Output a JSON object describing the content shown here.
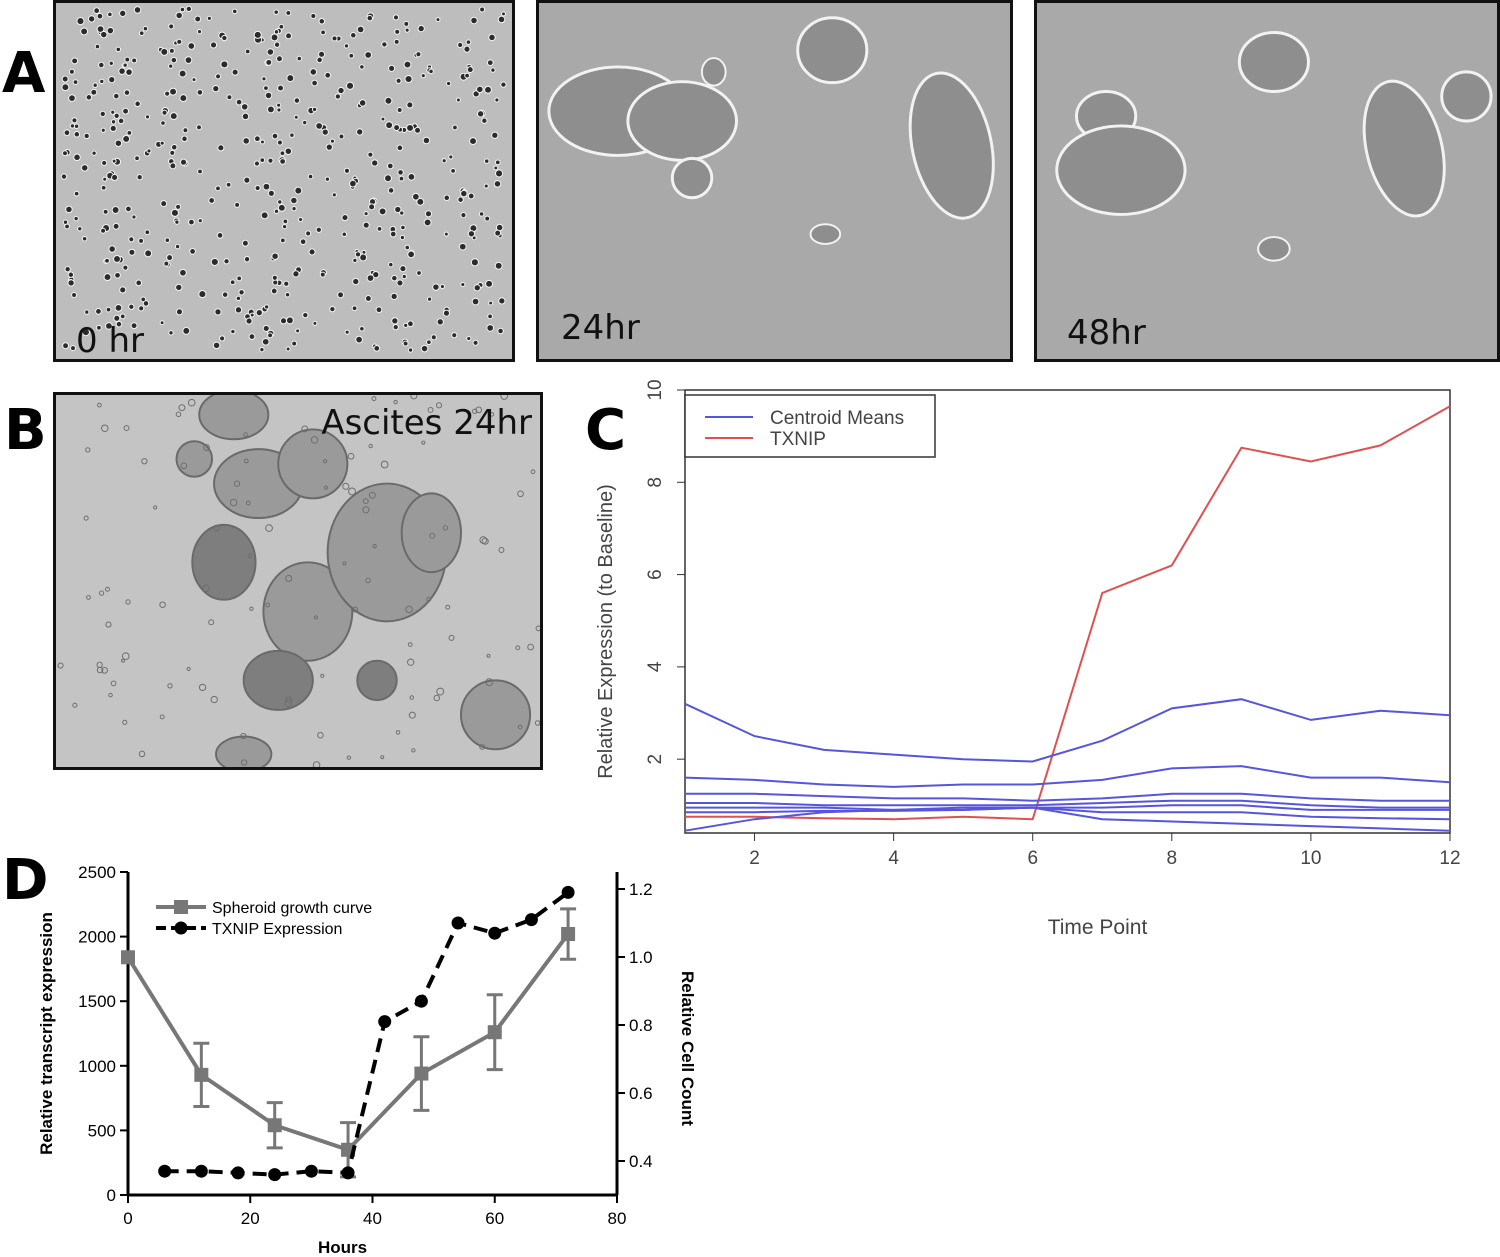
{
  "panels": {
    "a": {
      "letter": "A",
      "images": [
        {
          "label": "0 hr"
        },
        {
          "label": "24hr"
        },
        {
          "label": "48hr"
        }
      ]
    },
    "b": {
      "letter": "B",
      "image_label": "Ascites 24hr"
    },
    "c": {
      "letter": "C"
    },
    "d": {
      "letter": "D"
    }
  },
  "colors": {
    "centroid_lines": "#5555dd",
    "txnip_line_c": "#e05050",
    "growth_curve": "#777777",
    "txnip_d": "#000000"
  },
  "chart_data": [
    {
      "panel": "C",
      "type": "line",
      "xlabel": "Time Point",
      "ylabel": "Relative Expression (to Baseline)",
      "xlim": [
        1,
        12
      ],
      "ylim": [
        0.4,
        10
      ],
      "x_ticks": [
        2,
        4,
        6,
        8,
        10,
        12
      ],
      "y_ticks": [
        2,
        4,
        6,
        8,
        10
      ],
      "legend_position": "top-left",
      "legend": [
        "Centroid Means",
        "TXNIP"
      ],
      "x": [
        1,
        2,
        3,
        4,
        5,
        6,
        7,
        8,
        9,
        10,
        11,
        12
      ],
      "series": [
        {
          "name": "TXNIP",
          "group": "TXNIP",
          "values": [
            0.75,
            0.75,
            0.72,
            0.7,
            0.75,
            0.7,
            5.6,
            6.2,
            8.75,
            8.45,
            8.8,
            9.65
          ]
        },
        {
          "group": "Centroid Means",
          "values": [
            3.2,
            2.5,
            2.2,
            2.1,
            2.0,
            1.95,
            2.4,
            3.1,
            3.3,
            2.85,
            3.05,
            2.95
          ]
        },
        {
          "group": "Centroid Means",
          "values": [
            1.6,
            1.55,
            1.45,
            1.4,
            1.45,
            1.45,
            1.55,
            1.8,
            1.85,
            1.6,
            1.6,
            1.5
          ]
        },
        {
          "group": "Centroid Means",
          "values": [
            1.25,
            1.25,
            1.2,
            1.15,
            1.15,
            1.1,
            1.15,
            1.25,
            1.25,
            1.15,
            1.1,
            1.1
          ]
        },
        {
          "group": "Centroid Means",
          "values": [
            1.05,
            1.05,
            1.0,
            1.0,
            1.0,
            1.0,
            1.05,
            1.1,
            1.1,
            1.0,
            0.95,
            0.95
          ]
        },
        {
          "group": "Centroid Means",
          "values": [
            0.95,
            0.95,
            0.95,
            0.9,
            0.9,
            0.95,
            0.95,
            1.0,
            1.0,
            0.9,
            0.9,
            0.9
          ]
        },
        {
          "group": "Centroid Means",
          "values": [
            0.85,
            0.85,
            0.88,
            0.88,
            0.9,
            0.95,
            0.85,
            0.85,
            0.85,
            0.75,
            0.72,
            0.7
          ]
        },
        {
          "group": "Centroid Means",
          "values": [
            0.45,
            0.7,
            0.85,
            0.9,
            0.95,
            0.95,
            0.7,
            0.65,
            0.6,
            0.55,
            0.5,
            0.45
          ]
        }
      ]
    },
    {
      "panel": "D",
      "type": "line",
      "xlabel": "Hours",
      "ylabel_left": "Relative transcript expression",
      "ylabel_right": "Relative Cell Count",
      "xlim": [
        0,
        80
      ],
      "ylim_left": [
        0,
        2500
      ],
      "ylim_right": [
        0.3,
        1.25
      ],
      "x_ticks": [
        0,
        20,
        40,
        60,
        80
      ],
      "y_ticks_left": [
        0,
        500,
        1000,
        1500,
        2000,
        2500
      ],
      "y_ticks_right": [
        0.4,
        0.6,
        0.8,
        1.0,
        1.2
      ],
      "y_ticks_right_labels": [
        "0.4",
        "0.6",
        "0.8",
        "1.0",
        "1.2"
      ],
      "legend_position": "top-left",
      "series": [
        {
          "name": "Spheroid growth curve",
          "axis": "left",
          "marker": "square",
          "x": [
            0,
            12,
            24,
            36,
            48,
            60,
            72
          ],
          "values": [
            1840,
            930,
            540,
            350,
            940,
            1260,
            2020
          ],
          "error": [
            0,
            245,
            175,
            210,
            285,
            290,
            195
          ]
        },
        {
          "name": "TXNIP Expression",
          "axis": "right",
          "marker": "circle",
          "dashed": true,
          "x": [
            6,
            12,
            18,
            24,
            30,
            36,
            42,
            48,
            54,
            60,
            66,
            72
          ],
          "values": [
            0.37,
            0.37,
            0.365,
            0.36,
            0.37,
            0.365,
            0.81,
            0.87,
            1.1,
            1.07,
            1.11,
            1.19
          ]
        }
      ]
    }
  ]
}
